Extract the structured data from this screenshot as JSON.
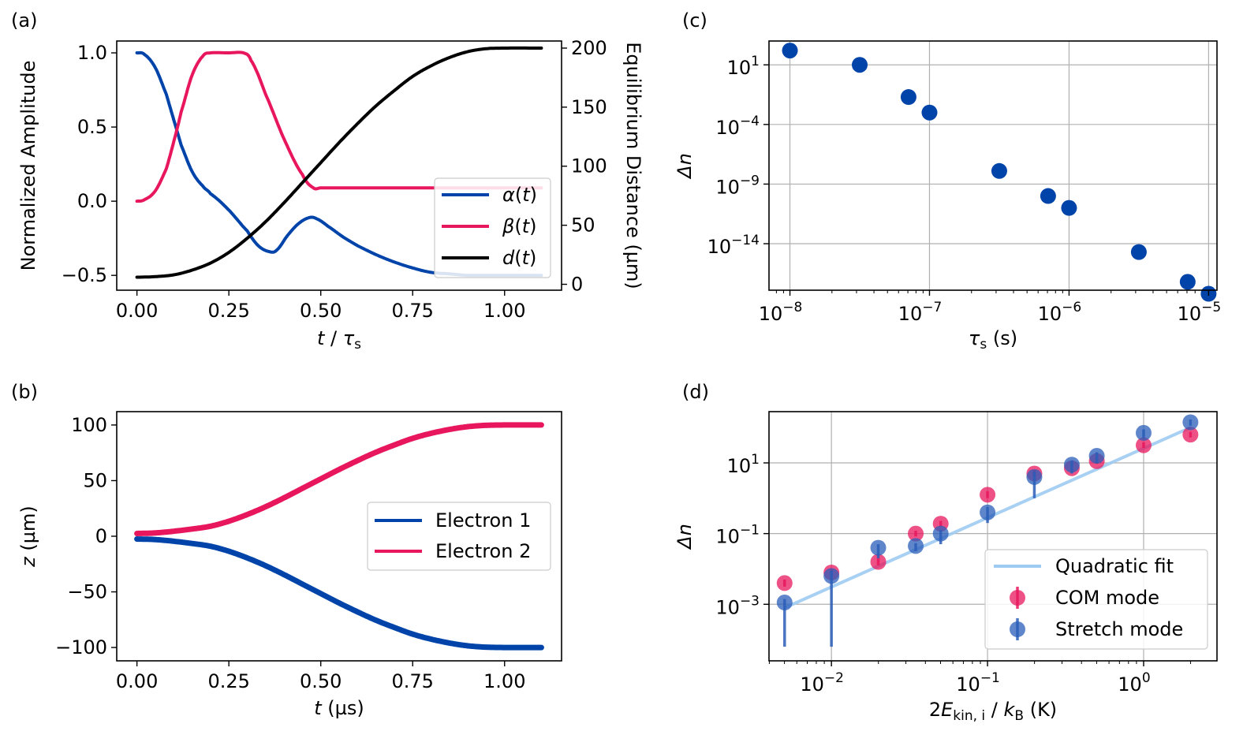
{
  "panels": {
    "a": {
      "label": "(a)"
    },
    "b": {
      "label": "(b)"
    },
    "c": {
      "label": "(c)"
    },
    "d": {
      "label": "(d)"
    }
  },
  "colors": {
    "blue": "#0044aa",
    "pink": "#e8175d",
    "black": "#000000",
    "light_blue": "#9ecbf2",
    "dark_blue": "#2a5db8"
  },
  "chart_data": [
    {
      "id": "a",
      "type": "line",
      "xlabel_html": [
        "t",
        " / ",
        "τ",
        "s"
      ],
      "ylabel": "Normalized Amplitude",
      "y2label": "Equilibrium Distance (µm)",
      "xlim": [
        -0.055,
        1.155
      ],
      "ylim": [
        -0.6,
        1.08
      ],
      "y2lim": [
        -5,
        206
      ],
      "xticks": [
        0,
        0.25,
        0.5,
        0.75,
        1.0
      ],
      "xtick_labels": [
        "0.00",
        "0.25",
        "0.50",
        "0.75",
        "1.00"
      ],
      "yticks": [
        -0.5,
        0,
        0.5,
        1.0
      ],
      "ytick_labels": [
        "−0.5",
        "0.0",
        "0.5",
        "1.0"
      ],
      "y2ticks": [
        0,
        50,
        100,
        150,
        200
      ],
      "y2tick_labels": [
        "0",
        "50",
        "100",
        "150",
        "200"
      ],
      "legend": {
        "position": "lower-right",
        "entries": [
          {
            "name": "α(t)",
            "color": "#0044aa"
          },
          {
            "name": "β(t)",
            "color": "#e8175d"
          },
          {
            "name": "d(t)",
            "color": "#000000"
          }
        ]
      },
      "series": [
        {
          "name": "α(t)",
          "color": "#0044aa",
          "axis": "left",
          "x": [
            0,
            0.02,
            0.05,
            0.08,
            0.1,
            0.12,
            0.15,
            0.18,
            0.2,
            0.25,
            0.3,
            0.33,
            0.36,
            0.38,
            0.41,
            0.44,
            0.47,
            0.49,
            0.52,
            0.56,
            0.6,
            0.65,
            0.7,
            0.75,
            0.8,
            0.85,
            0.9,
            1.0,
            1.1
          ],
          "y": [
            1.0,
            0.99,
            0.9,
            0.72,
            0.55,
            0.38,
            0.2,
            0.1,
            0.05,
            -0.06,
            -0.2,
            -0.3,
            -0.34,
            -0.33,
            -0.23,
            -0.15,
            -0.11,
            -0.12,
            -0.17,
            -0.24,
            -0.3,
            -0.36,
            -0.41,
            -0.45,
            -0.48,
            -0.49,
            -0.5,
            -0.5,
            -0.5
          ]
        },
        {
          "name": "β(t)",
          "color": "#e8175d",
          "axis": "left",
          "x": [
            0,
            0.02,
            0.05,
            0.08,
            0.1,
            0.12,
            0.15,
            0.18,
            0.2,
            0.25,
            0.29,
            0.31,
            0.35,
            0.4,
            0.45,
            0.48,
            0.5,
            0.6,
            0.8,
            1.1
          ],
          "y": [
            0.0,
            0.01,
            0.07,
            0.22,
            0.4,
            0.6,
            0.85,
            0.98,
            1.0,
            1.0,
            1.0,
            0.95,
            0.72,
            0.42,
            0.18,
            0.09,
            0.09,
            0.09,
            0.09,
            0.09
          ]
        },
        {
          "name": "d(t)",
          "color": "#000000",
          "axis": "right",
          "x": [
            0,
            0.05,
            0.1,
            0.15,
            0.2,
            0.25,
            0.3,
            0.35,
            0.4,
            0.45,
            0.5,
            0.55,
            0.6,
            0.65,
            0.7,
            0.75,
            0.8,
            0.85,
            0.9,
            0.95,
            1.0,
            1.1
          ],
          "y": [
            6,
            6.5,
            8,
            12,
            18,
            27,
            39,
            53,
            69,
            86,
            103,
            120,
            136,
            151,
            164,
            176,
            185,
            192,
            197,
            199.5,
            200,
            200
          ]
        }
      ]
    },
    {
      "id": "b",
      "type": "line",
      "xlabel_html": [
        "t",
        " (µs)"
      ],
      "ylabel_html": [
        "z",
        " (µm)"
      ],
      "xlim": [
        -0.055,
        1.155
      ],
      "ylim": [
        -112,
        112
      ],
      "xticks": [
        0,
        0.25,
        0.5,
        0.75,
        1.0
      ],
      "xtick_labels": [
        "0.00",
        "0.25",
        "0.50",
        "0.75",
        "1.00"
      ],
      "yticks": [
        -100,
        -50,
        0,
        50,
        100
      ],
      "ytick_labels": [
        "−100",
        "−50",
        "0",
        "50",
        "100"
      ],
      "legend": {
        "position": "center-right",
        "entries": [
          {
            "name": "Electron 1",
            "color": "#0044aa"
          },
          {
            "name": "Electron 2",
            "color": "#e8175d"
          }
        ]
      },
      "series": [
        {
          "name": "Electron 1",
          "color": "#0044aa",
          "x": [
            0,
            0.05,
            0.1,
            0.15,
            0.2,
            0.25,
            0.3,
            0.35,
            0.4,
            0.45,
            0.5,
            0.55,
            0.6,
            0.65,
            0.7,
            0.75,
            0.8,
            0.85,
            0.9,
            0.95,
            1.0,
            1.1
          ],
          "y": [
            -2.5,
            -3,
            -4.5,
            -6.5,
            -9,
            -13.5,
            -19.5,
            -26.5,
            -34.5,
            -43,
            -51.5,
            -60,
            -68,
            -75.5,
            -82,
            -88,
            -92.5,
            -96,
            -98.5,
            -99.7,
            -100,
            -100
          ]
        },
        {
          "name": "Electron 2",
          "color": "#e8175d",
          "x": [
            0,
            0.05,
            0.1,
            0.15,
            0.2,
            0.25,
            0.3,
            0.35,
            0.4,
            0.45,
            0.5,
            0.55,
            0.6,
            0.65,
            0.7,
            0.75,
            0.8,
            0.85,
            0.9,
            0.95,
            1.0,
            1.1
          ],
          "y": [
            2.5,
            3,
            4.5,
            6.5,
            9,
            13.5,
            19.5,
            26.5,
            34.5,
            43,
            51.5,
            60,
            68,
            75.5,
            82,
            88,
            92.5,
            96,
            98.5,
            99.7,
            100,
            100
          ]
        }
      ]
    },
    {
      "id": "c",
      "type": "scatter",
      "xscale": "log",
      "yscale": "log",
      "xlabel_html": [
        "τ",
        "s",
        " (s)"
      ],
      "ylabel_html": [
        "Δn"
      ],
      "xlim_log10": [
        -8.15,
        -4.94
      ],
      "ylim_log10": [
        -17.9,
        3.0
      ],
      "grid": true,
      "xticks_log10": [
        -8,
        -7,
        -6,
        -5
      ],
      "xtick_labels": [
        [
          "10",
          "−8"
        ],
        [
          "10",
          "−7"
        ],
        [
          "10",
          "−6"
        ],
        [
          "10",
          "−5"
        ]
      ],
      "yticks_log10": [
        1,
        -4,
        -9,
        -14
      ],
      "ytick_labels": [
        [
          "10",
          "1"
        ],
        [
          "10",
          "−4"
        ],
        [
          "10",
          "−9"
        ],
        [
          "10",
          "−14"
        ]
      ],
      "series": [
        {
          "name": "",
          "color": "#0044aa",
          "x_log10": [
            -8.0,
            -7.5,
            -7.15,
            -7.0,
            -6.5,
            -6.15,
            -6.0,
            -5.5,
            -5.15,
            -5.0
          ],
          "y_log10": [
            2.2,
            1.0,
            -1.7,
            -3.0,
            -7.9,
            -10.0,
            -11.0,
            -14.7,
            -17.2,
            -18.2
          ]
        }
      ]
    },
    {
      "id": "d",
      "type": "scatter",
      "xscale": "log",
      "yscale": "log",
      "xlabel_html": [
        "2",
        "E",
        "kin, i",
        " / ",
        "k",
        "B",
        " (K)"
      ],
      "ylabel_html": [
        "Δn"
      ],
      "xlim_log10": [
        -2.4,
        0.47
      ],
      "ylim_log10": [
        -4.6,
        2.45
      ],
      "grid": true,
      "xticks_log10": [
        -2,
        -1,
        0
      ],
      "xtick_labels": [
        [
          "10",
          "−2"
        ],
        [
          "10",
          "−1"
        ],
        [
          "10",
          "0"
        ]
      ],
      "yticks_log10": [
        1,
        -1,
        -3
      ],
      "ytick_labels": [
        [
          "10",
          "1"
        ],
        [
          "10",
          "−1"
        ],
        [
          "10",
          "−3"
        ]
      ],
      "legend": {
        "position": "lower-right",
        "entries": [
          {
            "name": "Quadratic fit",
            "color": "#9ecbf2",
            "kind": "line"
          },
          {
            "name": "COM mode",
            "color": "#e8175d",
            "kind": "errorpoint"
          },
          {
            "name": "Stretch mode",
            "color": "#2a5db8",
            "kind": "errorpoint"
          }
        ]
      },
      "fit": {
        "name": "Quadratic fit",
        "color": "#9ecbf2",
        "x_log10": [
          -2.3,
          0.3
        ],
        "y_log10": [
          -3.1,
          2.0
        ]
      },
      "series": [
        {
          "name": "COM mode",
          "color": "#e8175d",
          "x_log10": [
            -2.3,
            -2.0,
            -1.7,
            -1.46,
            -1.3,
            -1.0,
            -0.7,
            -0.46,
            -0.3,
            0.0,
            0.3
          ],
          "y_log10": [
            -2.4,
            -2.1,
            -1.8,
            -1.0,
            -0.72,
            0.1,
            0.7,
            0.85,
            1.05,
            1.5,
            1.8
          ],
          "err_low": [
            0.1,
            0.1,
            0.1,
            0.08,
            0.08,
            0.1,
            0.1,
            0.1,
            0.08,
            0.08,
            0.08
          ],
          "err_high": [
            0.1,
            0.1,
            0.1,
            0.08,
            0.08,
            0.1,
            0.1,
            0.1,
            0.08,
            0.08,
            0.08
          ]
        },
        {
          "name": "Stretch mode",
          "color": "#2a5db8",
          "x_log10": [
            -2.3,
            -2.0,
            -1.7,
            -1.46,
            -1.3,
            -1.0,
            -0.7,
            -0.46,
            -0.3,
            0.0,
            0.3
          ],
          "y_log10": [
            -2.95,
            -2.2,
            -1.4,
            -1.35,
            -1.0,
            -0.4,
            0.6,
            0.95,
            1.2,
            1.85,
            2.15
          ],
          "err_low": [
            1.25,
            2.0,
            0.3,
            0.15,
            0.3,
            0.3,
            0.6,
            0.25,
            0.2,
            0.15,
            0.1
          ],
          "err_high": [
            0.1,
            0.15,
            0.1,
            0.08,
            0.1,
            0.15,
            0.15,
            0.12,
            0.1,
            0.1,
            0.08
          ]
        }
      ]
    }
  ]
}
